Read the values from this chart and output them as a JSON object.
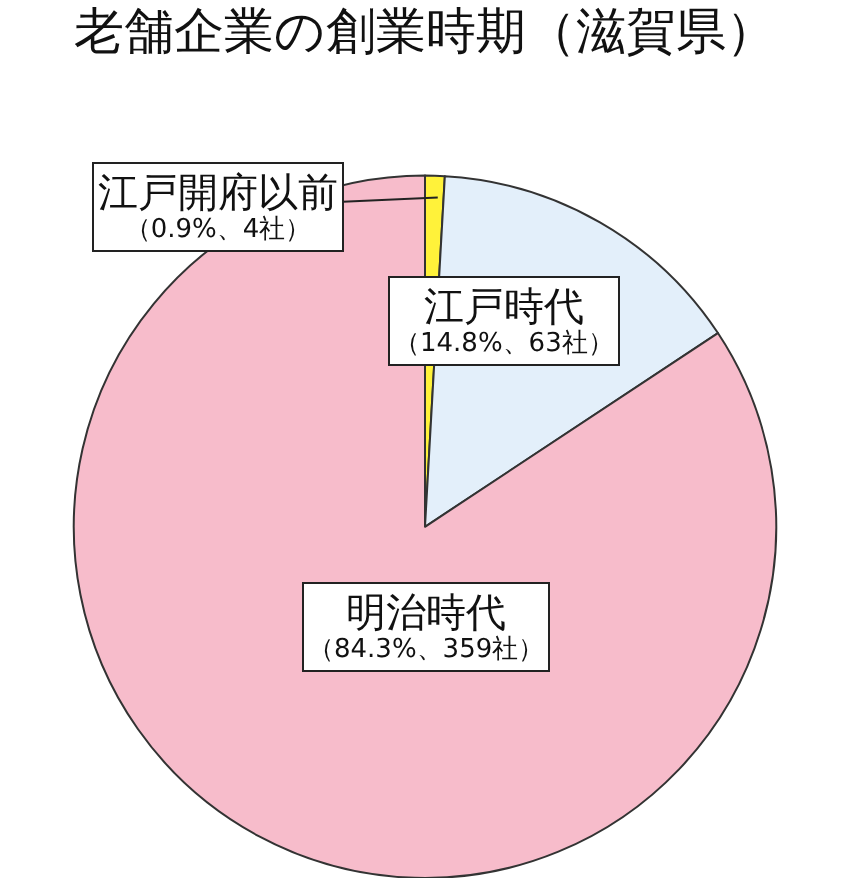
{
  "chart_data": {
    "type": "pie",
    "title": "老舗企業の創業時期（滋賀県）",
    "categories": [
      "江戸開府以前",
      "江戸時代",
      "明治時代"
    ],
    "values": [
      0.9,
      14.8,
      84.3
    ],
    "colors": [
      "#fff23a",
      "#e3effa",
      "#f7bccb"
    ],
    "value_labels": [
      "（0.9%、4社）",
      "（14.8%、63社）",
      "（84.3%、359社）"
    ]
  }
}
